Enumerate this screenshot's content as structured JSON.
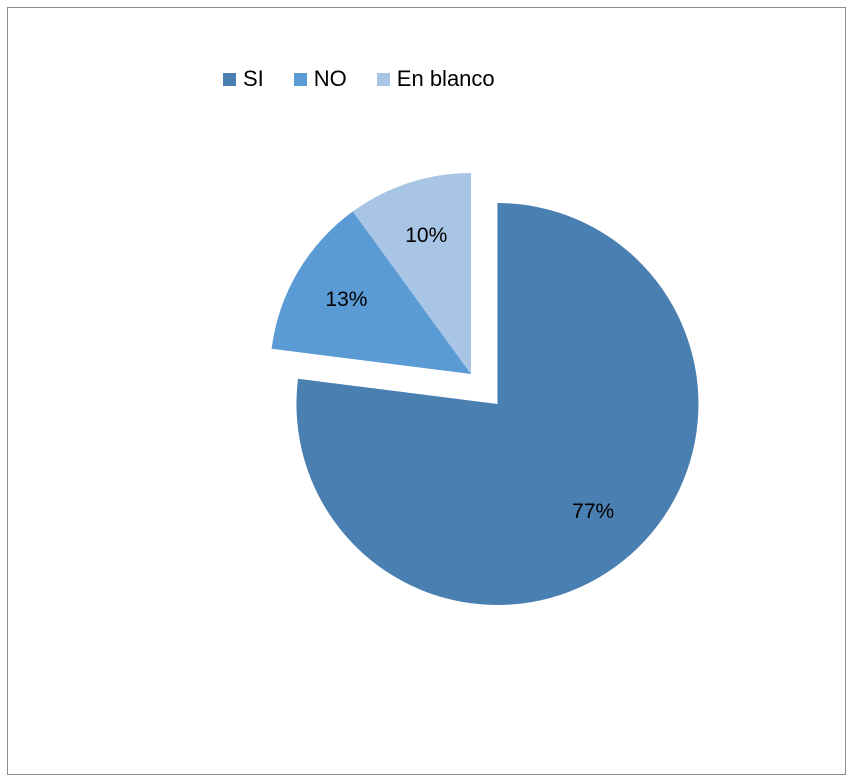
{
  "chart_data": {
    "type": "pie",
    "title": "",
    "legend_position": "top",
    "exploded_slice": "SI",
    "slices": [
      {
        "label": "SI",
        "value": 77,
        "display": "77%",
        "color": "#4a7fb2"
      },
      {
        "label": "NO",
        "value": 13,
        "display": "13%",
        "color": "#5b9bd5"
      },
      {
        "label": "En blanco",
        "value": 10,
        "display": "10%",
        "color": "#a9c5e6"
      }
    ]
  }
}
